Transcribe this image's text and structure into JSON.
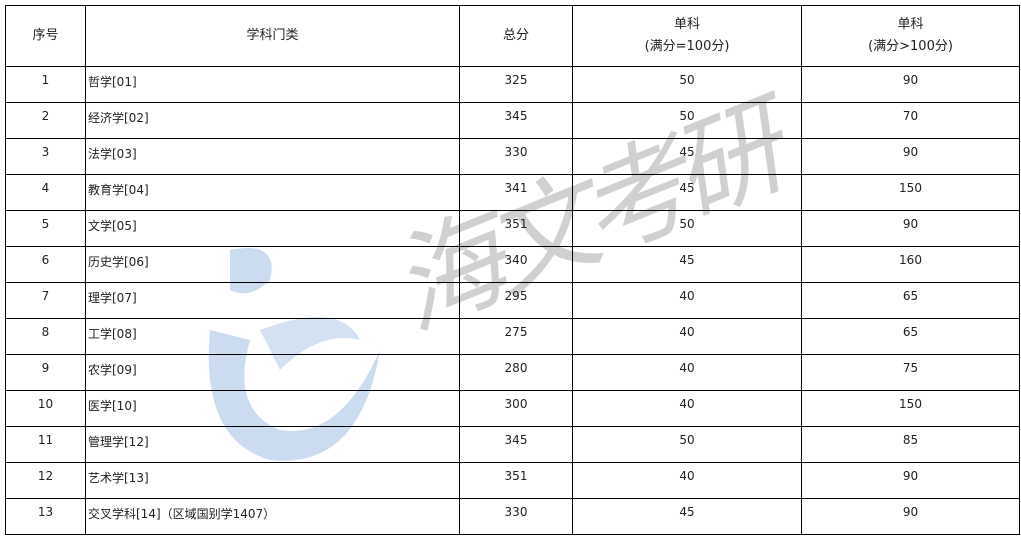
{
  "headers": {
    "index": "序号",
    "category": "学科门类",
    "total": "总分",
    "single1_line1": "单科",
    "single1_line2": "(满分=100分)",
    "single2_line1": "单科",
    "single2_line2": "(满分>100分)"
  },
  "rows": [
    {
      "index": "1",
      "category": "哲学[01]",
      "total": "325",
      "single100": "50",
      "singleOver": "90"
    },
    {
      "index": "2",
      "category": "经济学[02]",
      "total": "345",
      "single100": "50",
      "singleOver": "70"
    },
    {
      "index": "3",
      "category": "法学[03]",
      "total": "330",
      "single100": "45",
      "singleOver": "90"
    },
    {
      "index": "4",
      "category": "教育学[04]",
      "total": "341",
      "single100": "45",
      "singleOver": "150"
    },
    {
      "index": "5",
      "category": "文学[05]",
      "total": "351",
      "single100": "50",
      "singleOver": "90"
    },
    {
      "index": "6",
      "category": "历史学[06]",
      "total": "340",
      "single100": "45",
      "singleOver": "160"
    },
    {
      "index": "7",
      "category": "理学[07]",
      "total": "295",
      "single100": "40",
      "singleOver": "65"
    },
    {
      "index": "8",
      "category": "工学[08]",
      "total": "275",
      "single100": "40",
      "singleOver": "65"
    },
    {
      "index": "9",
      "category": "农学[09]",
      "total": "280",
      "single100": "40",
      "singleOver": "75"
    },
    {
      "index": "10",
      "category": "医学[10]",
      "total": "300",
      "single100": "40",
      "singleOver": "150"
    },
    {
      "index": "11",
      "category": "管理学[12]",
      "total": "345",
      "single100": "50",
      "singleOver": "85"
    },
    {
      "index": "12",
      "category": "艺术学[13]",
      "total": "351",
      "single100": "40",
      "singleOver": "90"
    },
    {
      "index": "13",
      "category": "交叉学科[14]（区域国别学1407）",
      "total": "330",
      "single100": "45",
      "singleOver": "90"
    }
  ],
  "watermark": {
    "text": "海文考研",
    "logo_color": "#8fb3dc"
  }
}
